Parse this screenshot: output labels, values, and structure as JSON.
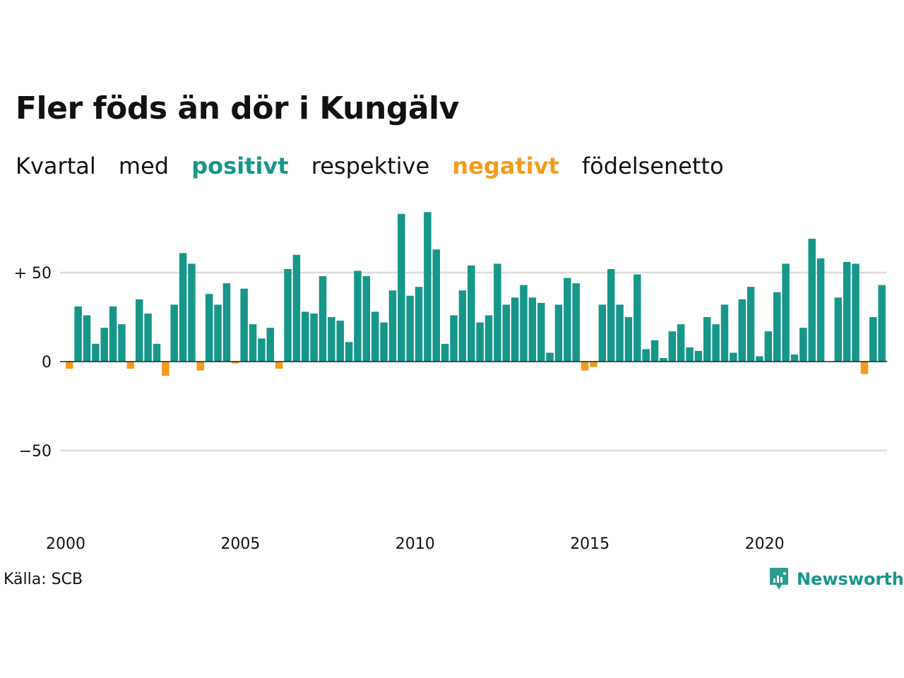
{
  "title": "Fler föds än dör i Kungälv",
  "subtitle": {
    "w1": "Kvartal",
    "w2": "med",
    "positive": "positivt",
    "w3": "respektive",
    "negative": "negativt",
    "w4": "födelsenetto"
  },
  "source": "Källa: SCB",
  "brand": {
    "name": "Newsworthy",
    "icon": "newsworthy-logo-icon"
  },
  "colors": {
    "positive": "#16978a",
    "negative": "#f39c1b",
    "grid": "#dddddd",
    "text": "#111111"
  },
  "chart_data": {
    "type": "bar",
    "y_tick_labels": [
      "+ 50",
      "0",
      "−50"
    ],
    "y_ticks": [
      50,
      0,
      -50
    ],
    "ylim": [
      -95,
      90
    ],
    "x_tick_labels": [
      "2000",
      "2005",
      "2010",
      "2015",
      "2020"
    ],
    "x_tick_values": [
      2000,
      2005,
      2010,
      2015,
      2020
    ],
    "x_start": 2000,
    "grid": true,
    "values": [
      -4,
      31,
      26,
      10,
      19,
      31,
      21,
      -4,
      35,
      27,
      10,
      -8,
      32,
      61,
      55,
      -5,
      38,
      32,
      44,
      -1,
      41,
      21,
      13,
      19,
      -4,
      52,
      60,
      28,
      27,
      48,
      25,
      23,
      11,
      51,
      48,
      28,
      22,
      40,
      83,
      37,
      42,
      84,
      63,
      10,
      26,
      40,
      54,
      22,
      26,
      55,
      32,
      36,
      43,
      36,
      33,
      5,
      32,
      47,
      44,
      -5,
      -3,
      32,
      52,
      32,
      25,
      49,
      7,
      12,
      2,
      17,
      21,
      8,
      6,
      25,
      21,
      32,
      5,
      35,
      42,
      3,
      17,
      39,
      55,
      4,
      19,
      69,
      58,
      0,
      36,
      56,
      55,
      -7,
      25,
      43
    ]
  }
}
